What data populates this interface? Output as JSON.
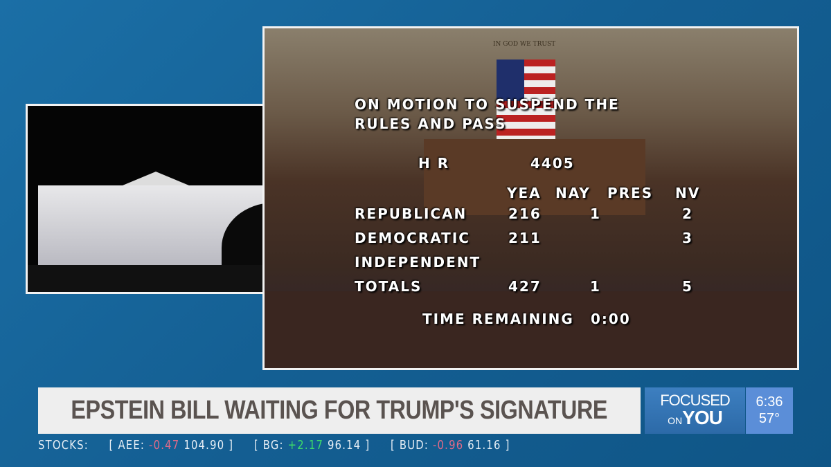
{
  "vote_board": {
    "motion_line1": "ON MOTION TO SUSPEND THE",
    "motion_line2": "RULES AND PASS",
    "bill_prefix": "H R",
    "bill_number": "4405",
    "columns": [
      "YEA",
      "NAY",
      "PRES",
      "NV"
    ],
    "rows": [
      {
        "party": "REPUBLICAN",
        "yea": "216",
        "nay": "1",
        "pres": "",
        "nv": "2"
      },
      {
        "party": "DEMOCRATIC",
        "yea": "211",
        "nay": "",
        "pres": "",
        "nv": "3"
      },
      {
        "party": "INDEPENDENT",
        "yea": "",
        "nay": "",
        "pres": "",
        "nv": ""
      },
      {
        "party": "TOTALS",
        "yea": "427",
        "nay": "1",
        "pres": "",
        "nv": "5"
      }
    ],
    "time_label": "TIME REMAINING",
    "time_value": "0:00",
    "backdrop_motto": "IN GOD WE TRUST"
  },
  "headline": "EPSTEIN BILL WAITING FOR TRUMP'S SIGNATURE",
  "logo": {
    "line1": "FOCUSED",
    "line2a": "ON",
    "line2b": "YOU"
  },
  "clock": {
    "time": "6:36",
    "temp": "57°"
  },
  "ticker": {
    "label": "STOCKS:",
    "items": [
      {
        "symbol": "AEE:",
        "change": "-0.47",
        "price": "104.90",
        "direction": "down"
      },
      {
        "symbol": "BG:",
        "change": "+2.17",
        "price": "96.14",
        "direction": "up"
      },
      {
        "symbol": "BUD:",
        "change": "-0.96",
        "price": "61.16",
        "direction": "down"
      }
    ]
  },
  "colors": {
    "background": "#145f93",
    "headline_bg": "#eeeeee",
    "headline_text": "#5a5350",
    "down": "#e06a88",
    "up": "#3ddc6a"
  }
}
